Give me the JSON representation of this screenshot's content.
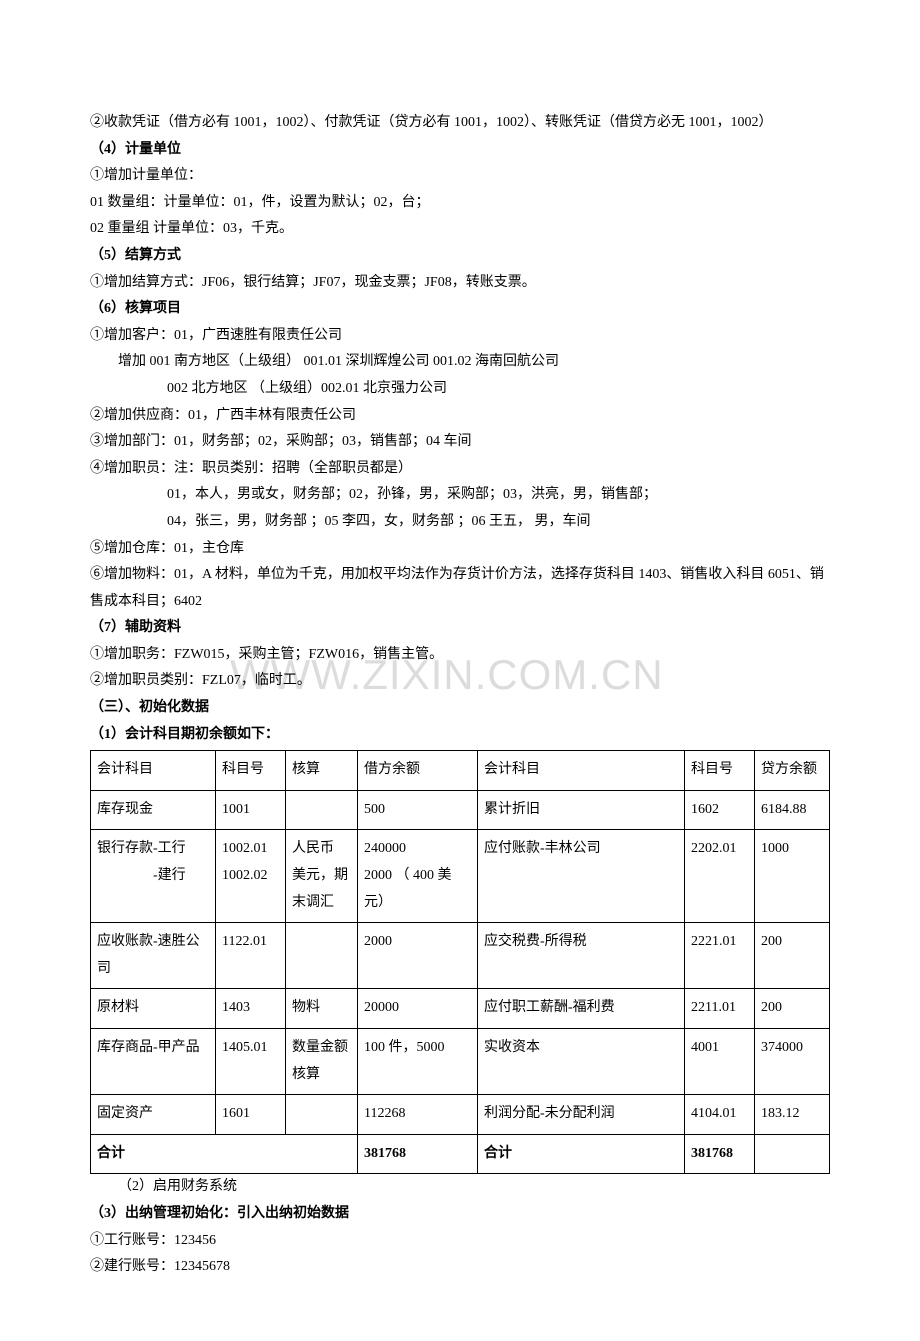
{
  "lines": {
    "l1": "②收款凭证（借方必有 1001，1002）、付款凭证（贷方必有 1001，1002）、转账凭证（借贷方必无 1001，1002）",
    "l2": "（4）计量单位",
    "l3": "①增加计量单位：",
    "l4": "01 数量组：计量单位：01，件，设置为默认；02，台；",
    "l5": "02 重量组 计量单位：03，千克。",
    "l6": "（5）结算方式",
    "l7": "①增加结算方式：JF06，银行结算；JF07，现金支票；JF08，转账支票。",
    "l8": "（6）核算项目",
    "l9": "①增加客户：01，广西速胜有限责任公司",
    "l10": "增加 001 南方地区（上级组） 001.01 深圳辉煌公司 001.02 海南回航公司",
    "l11": "002 北方地区 （上级组）002.01 北京强力公司",
    "l12": "②增加供应商：01，广西丰林有限责任公司",
    "l13": "③增加部门：01，财务部；02，采购部；03，销售部；04 车间",
    "l14": "④增加职员：注：职员类别：招聘（全部职员都是）",
    "l15": "01，本人，男或女，财务部；02，孙锋，男，采购部；03，洪亮，男，销售部；",
    "l16": "04，张三，男，财务部 ；05 李四，女，财务部 ；06 王五， 男，车间",
    "l17": "⑤增加仓库：01，主仓库",
    "l18": "⑥增加物料：01，A 材料，单位为千克，用加权平均法作为存货计价方法，选择存货科目 1403、销售收入科目 6051、销售成本科目；6402",
    "l19": "（7）辅助资料",
    "l20": "①增加职务：FZW015，采购主管；FZW016，销售主管。",
    "l21": "②增加职员类别：FZL07，临时工。",
    "l22": "（三）、初始化数据",
    "l23": "（1）会计科目期初余额如下：",
    "l24": "（2）启用财务系统",
    "l25": "（3）出纳管理初始化：引入出纳初始数据",
    "l26": "①工行账号：123456",
    "l27": "②建行账号：12345678"
  },
  "watermark": "WWW.ZIXIN.COM.CN",
  "table": {
    "header": {
      "c1": "会计科目",
      "c2": "科目号",
      "c3": "核算",
      "c4": "借方余额",
      "c5": "会计科目",
      "c6": "科目号",
      "c7": "贷方余额"
    },
    "rows": [
      {
        "c1": "库存现金",
        "c2": "1001",
        "c3": "",
        "c4": "500",
        "c5": "累计折旧",
        "c6": "1602",
        "c7": "6184.88"
      },
      {
        "c1": "银行存款-工行\n　　　　-建行",
        "c2": "1002.01\n1002.02",
        "c3": "人民币\n美元，期末调汇",
        "c4": "240000\n2000 （ 400 美元）",
        "c5": "应付账款-丰林公司",
        "c6": "2202.01",
        "c7": "1000"
      },
      {
        "c1": "应收账款-速胜公司",
        "c2": "1122.01",
        "c3": "",
        "c4": "2000",
        "c5": "应交税费-所得税",
        "c6": "2221.01",
        "c7": "200"
      },
      {
        "c1": "原材料",
        "c2": "1403",
        "c3": "物料",
        "c4": "20000",
        "c5": "应付职工薪酬-福利费",
        "c6": "2211.01",
        "c7": "200"
      },
      {
        "c1": "库存商品-甲产品",
        "c2": "1405.01",
        "c3": "数量金额核算",
        "c4": "100 件，5000",
        "c5": "实收资本",
        "c6": "4001",
        "c7": "374000"
      },
      {
        "c1": "固定资产",
        "c2": "1601",
        "c3": "",
        "c4": "112268",
        "c5": "利润分配-未分配利润",
        "c6": "4104.01",
        "c7": "183.12"
      }
    ],
    "total": {
      "left_label": "合计",
      "left_val": "381768",
      "right_label": "合计",
      "right_val": "381768"
    }
  }
}
